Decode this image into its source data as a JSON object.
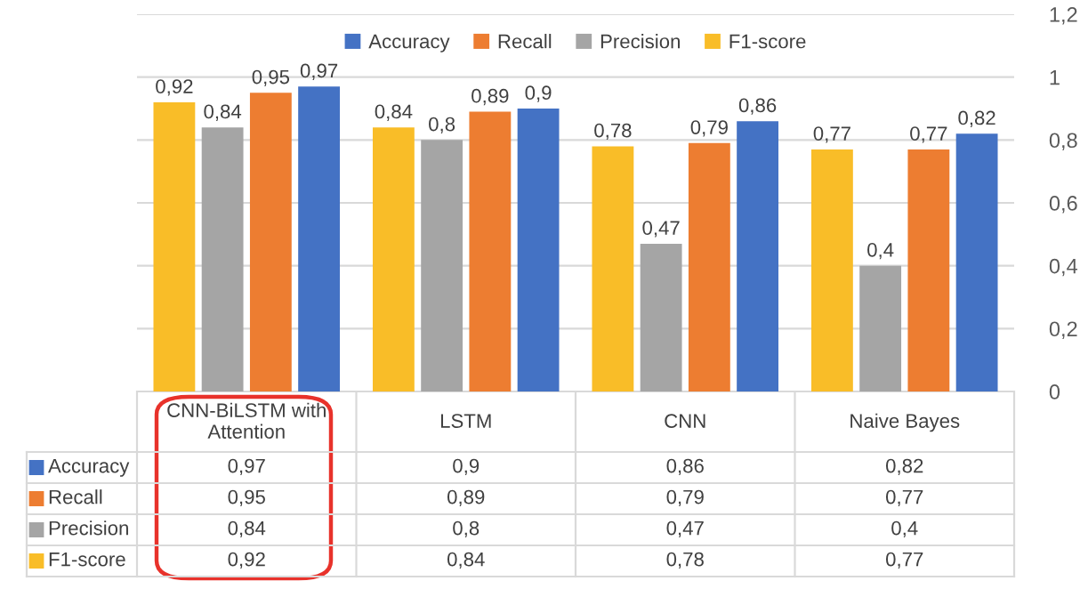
{
  "chart_data": {
    "type": "bar",
    "categories": [
      "CNN-BiLSTM with\nAttention",
      "LSTM",
      "CNN",
      "Naive Bayes"
    ],
    "series": [
      {
        "name": "F1-score",
        "color": "#f9bd28",
        "values": [
          0.92,
          0.84,
          0.78,
          0.77
        ],
        "value_labels": [
          "0,92",
          "0,84",
          "0,78",
          "0,77"
        ]
      },
      {
        "name": "Precision",
        "color": "#a5a5a5",
        "values": [
          0.84,
          0.8,
          0.47,
          0.4
        ],
        "value_labels": [
          "0,84",
          "0,8",
          "0,47",
          "0,4"
        ]
      },
      {
        "name": "Recall",
        "color": "#ed7d31",
        "values": [
          0.95,
          0.89,
          0.79,
          0.77
        ],
        "value_labels": [
          "0,95",
          "0,89",
          "0,79",
          "0,77"
        ]
      },
      {
        "name": "Accuracy",
        "color": "#4472c4",
        "values": [
          0.97,
          0.9,
          0.86,
          0.82
        ],
        "value_labels": [
          "0,97",
          "0,9",
          "0,86",
          "0,82"
        ]
      }
    ],
    "ylim": [
      0,
      1.2
    ],
    "yticks": [
      0,
      {
        "value": 0.2,
        "label": "0,2"
      },
      {
        "value": 0.4,
        "label": "0,4"
      },
      {
        "value": 0.6,
        "label": "0,6"
      },
      {
        "value": 0.8,
        "label": "0,8"
      },
      1,
      {
        "value": 1.2,
        "label": "1,2"
      }
    ],
    "grid": "y",
    "legend": "top"
  }
}
